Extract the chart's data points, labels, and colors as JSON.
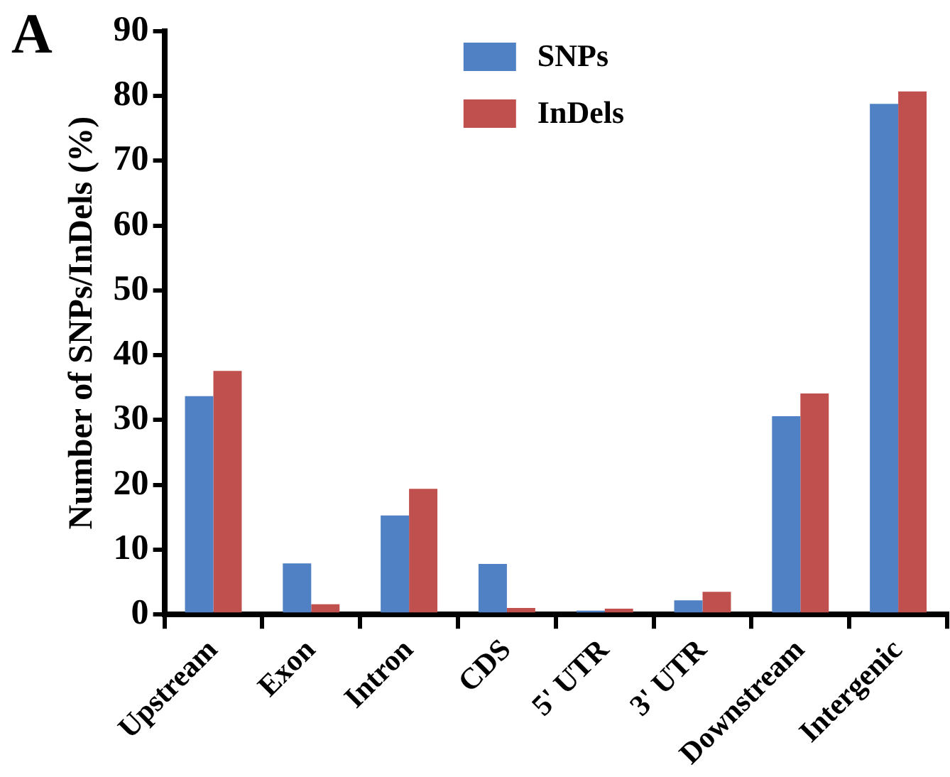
{
  "chart_data": {
    "type": "bar",
    "ylabel": "Number of SNPs/InDels (%)",
    "annotations": [
      "A"
    ],
    "categories": [
      "Upstream",
      "Exon",
      "Intron",
      "CDS",
      "5' UTR",
      "3' UTR",
      "Downstream",
      "Intergenic"
    ],
    "series": [
      {
        "name": "SNPs",
        "color": "#4f81c4",
        "values": [
          33.7,
          7.9,
          15.3,
          7.8,
          0.6,
          2.2,
          30.6,
          78.8
        ]
      },
      {
        "name": "InDels",
        "color": "#c0504d",
        "values": [
          37.6,
          1.6,
          19.4,
          1.0,
          0.9,
          3.5,
          34.1,
          80.7
        ]
      }
    ],
    "ylim": [
      0,
      90
    ],
    "yticks": [
      0,
      10,
      20,
      30,
      40,
      50,
      60,
      70,
      80,
      90
    ],
    "grid": false,
    "legend": "top"
  }
}
